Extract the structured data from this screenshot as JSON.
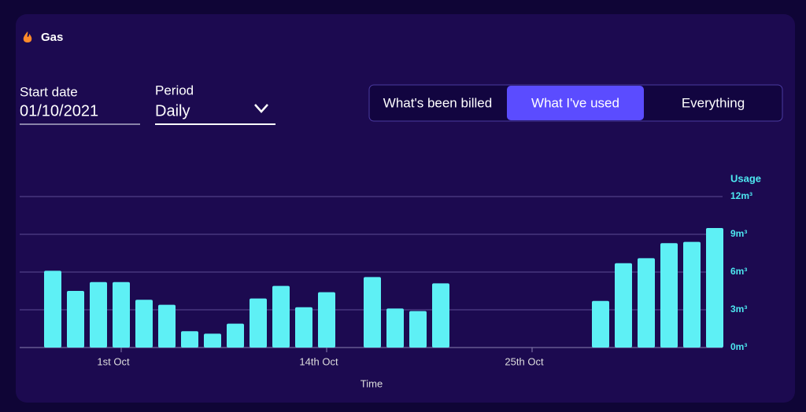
{
  "header": {
    "title": "Gas"
  },
  "filters": {
    "start_label": "Start date",
    "start_value": "01/10/2021",
    "period_label": "Period",
    "period_value": "Daily"
  },
  "toggle": {
    "options": [
      "What's been billed",
      "What I've used",
      "Everything"
    ],
    "selected": 1
  },
  "chart_data": {
    "type": "bar",
    "y_label": "Usage",
    "x_label": "Time",
    "color": "#5ef0f5",
    "grid": true,
    "categories": [
      null,
      null,
      null,
      "1st Oct",
      null,
      null,
      null,
      null,
      null,
      null,
      null,
      null,
      "14th Oct",
      null,
      null,
      null,
      null,
      null,
      null,
      null,
      null,
      "25th Oct",
      null,
      null,
      null,
      null,
      null,
      null,
      null,
      null
    ],
    "values": [
      6.1,
      4.5,
      5.2,
      5.2,
      3.8,
      3.4,
      1.3,
      1.1,
      1.9,
      3.9,
      4.9,
      3.2,
      4.4,
      null,
      5.6,
      3.1,
      2.9,
      5.1,
      null,
      null,
      null,
      null,
      null,
      null,
      3.7,
      6.7,
      7.1,
      8.3,
      8.4,
      9.5
    ],
    "ylim": [
      0,
      12
    ],
    "yticks": [
      {
        "value": 0,
        "label": "0m³"
      },
      {
        "value": 3,
        "label": "3m³"
      },
      {
        "value": 6,
        "label": "6m³"
      },
      {
        "value": 9,
        "label": "9m³"
      },
      {
        "value": 12,
        "label": "12m³"
      }
    ]
  }
}
